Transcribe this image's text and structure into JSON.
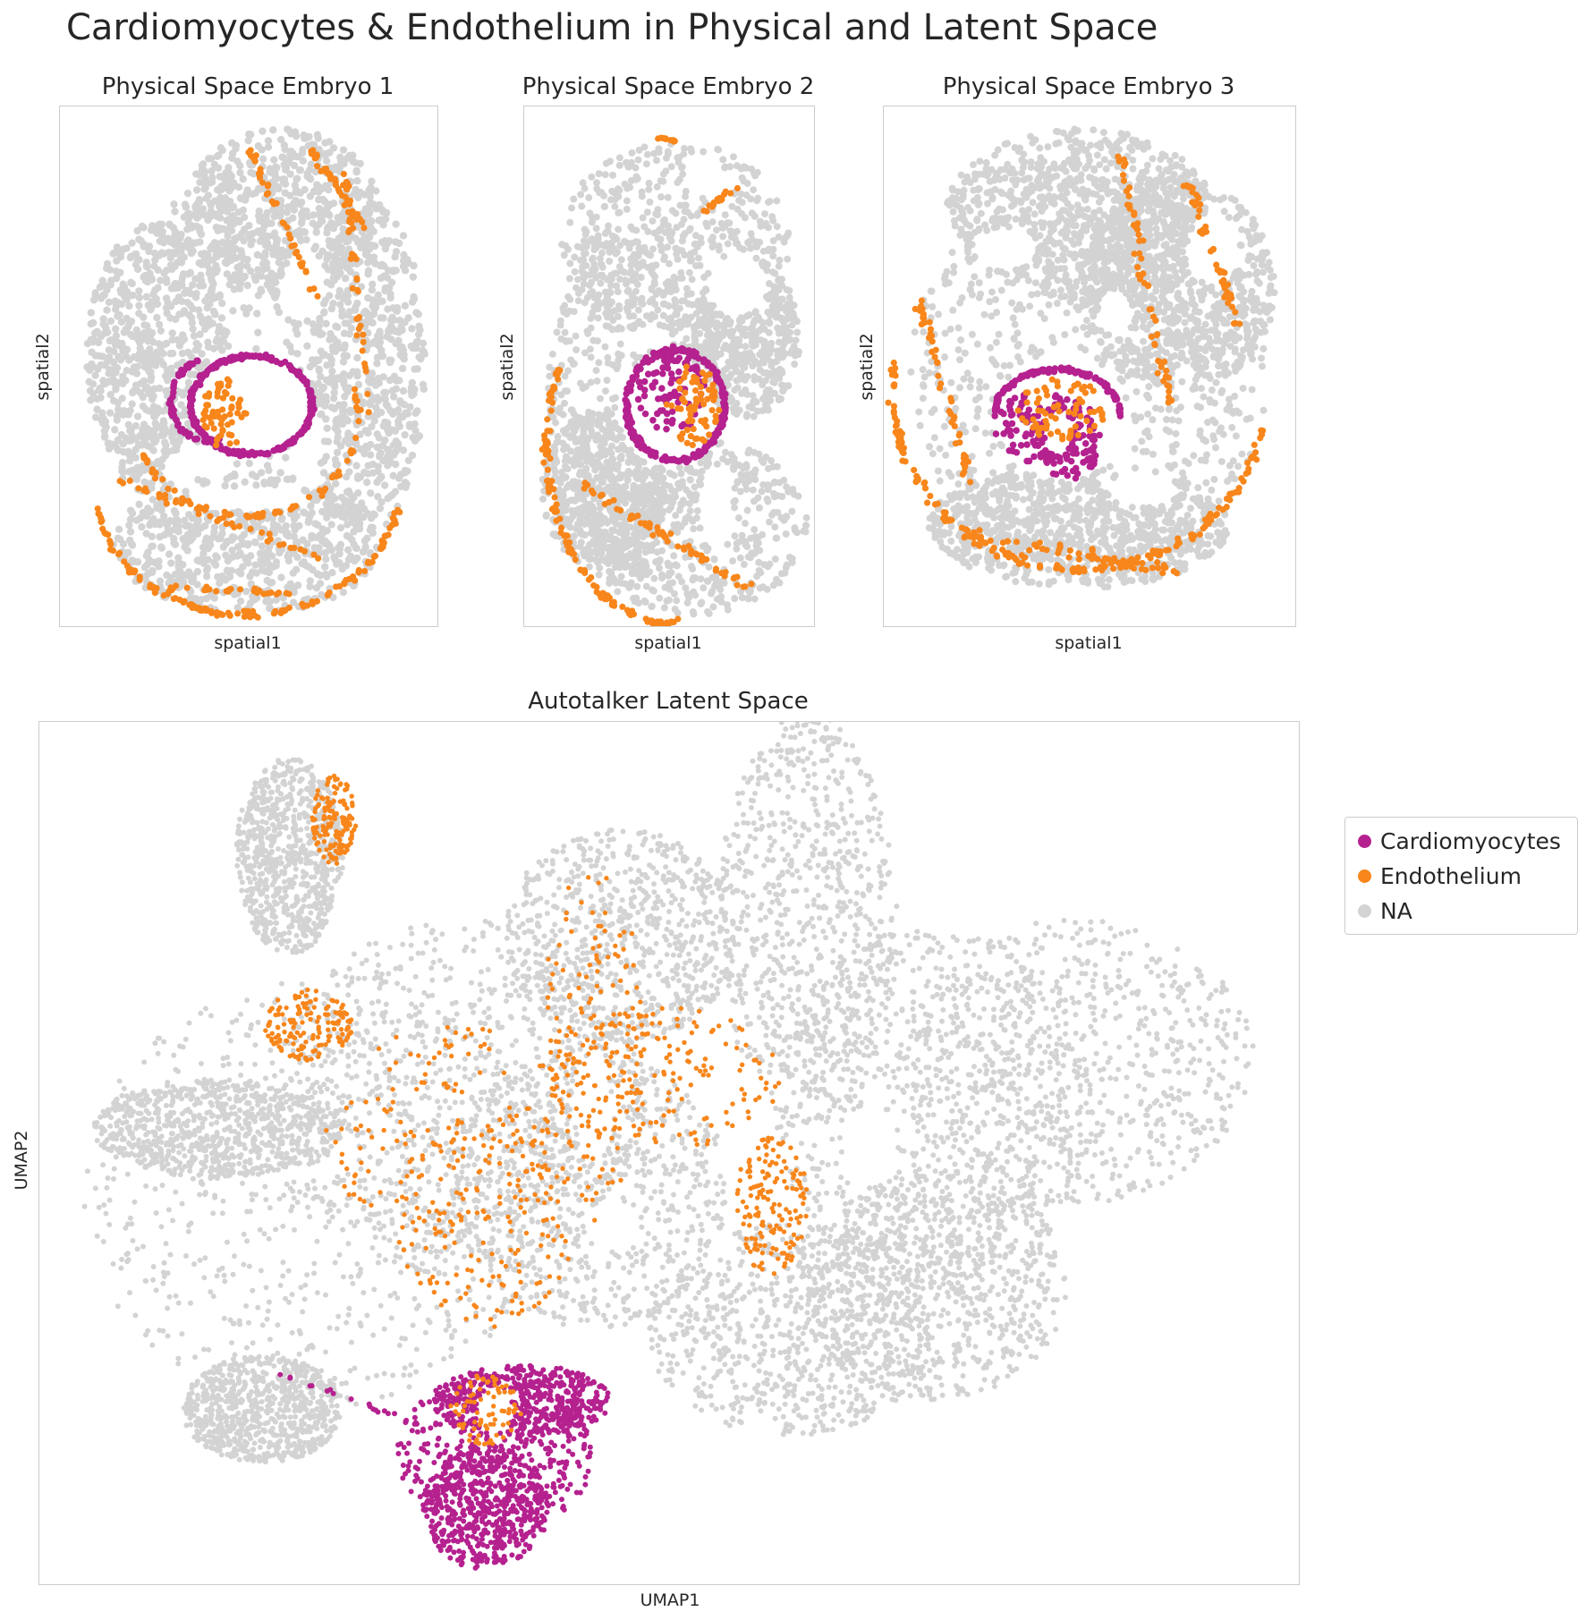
{
  "figure_title": "Cardiomyocytes & Endothelium in Physical and Latent Space",
  "colors": {
    "Cardiomyocytes": "#b5218f",
    "Endothelium": "#f8861b",
    "NA": "#d3d3d3"
  },
  "legend": [
    {
      "label": "Cardiomyocytes",
      "color": "#b5218f"
    },
    {
      "label": "Endothelium",
      "color": "#f8861b"
    },
    {
      "label": "NA",
      "color": "#d3d3d3"
    }
  ],
  "chart_data": [
    {
      "type": "scatter",
      "title": "Physical Space Embryo 1",
      "xlabel": "spatial1",
      "ylabel": "spatial2",
      "ticks": "none",
      "grid": false,
      "series": [
        {
          "name": "Cardiomyocytes",
          "description_points": "ring-shaped heart region in center"
        },
        {
          "name": "Endothelium",
          "description_points": "vessel-like curves around body"
        },
        {
          "name": "NA"
        }
      ]
    },
    {
      "type": "scatter",
      "title": "Physical Space Embryo 2",
      "xlabel": "spatial1",
      "ylabel": "spatial2",
      "ticks": "none",
      "grid": false,
      "series": [
        {
          "name": "Cardiomyocytes"
        },
        {
          "name": "Endothelium"
        },
        {
          "name": "NA"
        }
      ]
    },
    {
      "type": "scatter",
      "title": "Physical Space Embryo 3",
      "xlabel": "spatial1",
      "ylabel": "spatial2",
      "ticks": "none",
      "grid": false,
      "series": [
        {
          "name": "Cardiomyocytes"
        },
        {
          "name": "Endothelium"
        },
        {
          "name": "NA"
        }
      ]
    },
    {
      "type": "scatter",
      "title": "Autotalker Latent Space",
      "xlabel": "UMAP1",
      "ylabel": "UMAP2",
      "ticks": "none",
      "grid": false,
      "legend_position": "right",
      "series": [
        {
          "name": "Cardiomyocytes"
        },
        {
          "name": "Endothelium"
        },
        {
          "name": "NA"
        }
      ]
    }
  ]
}
